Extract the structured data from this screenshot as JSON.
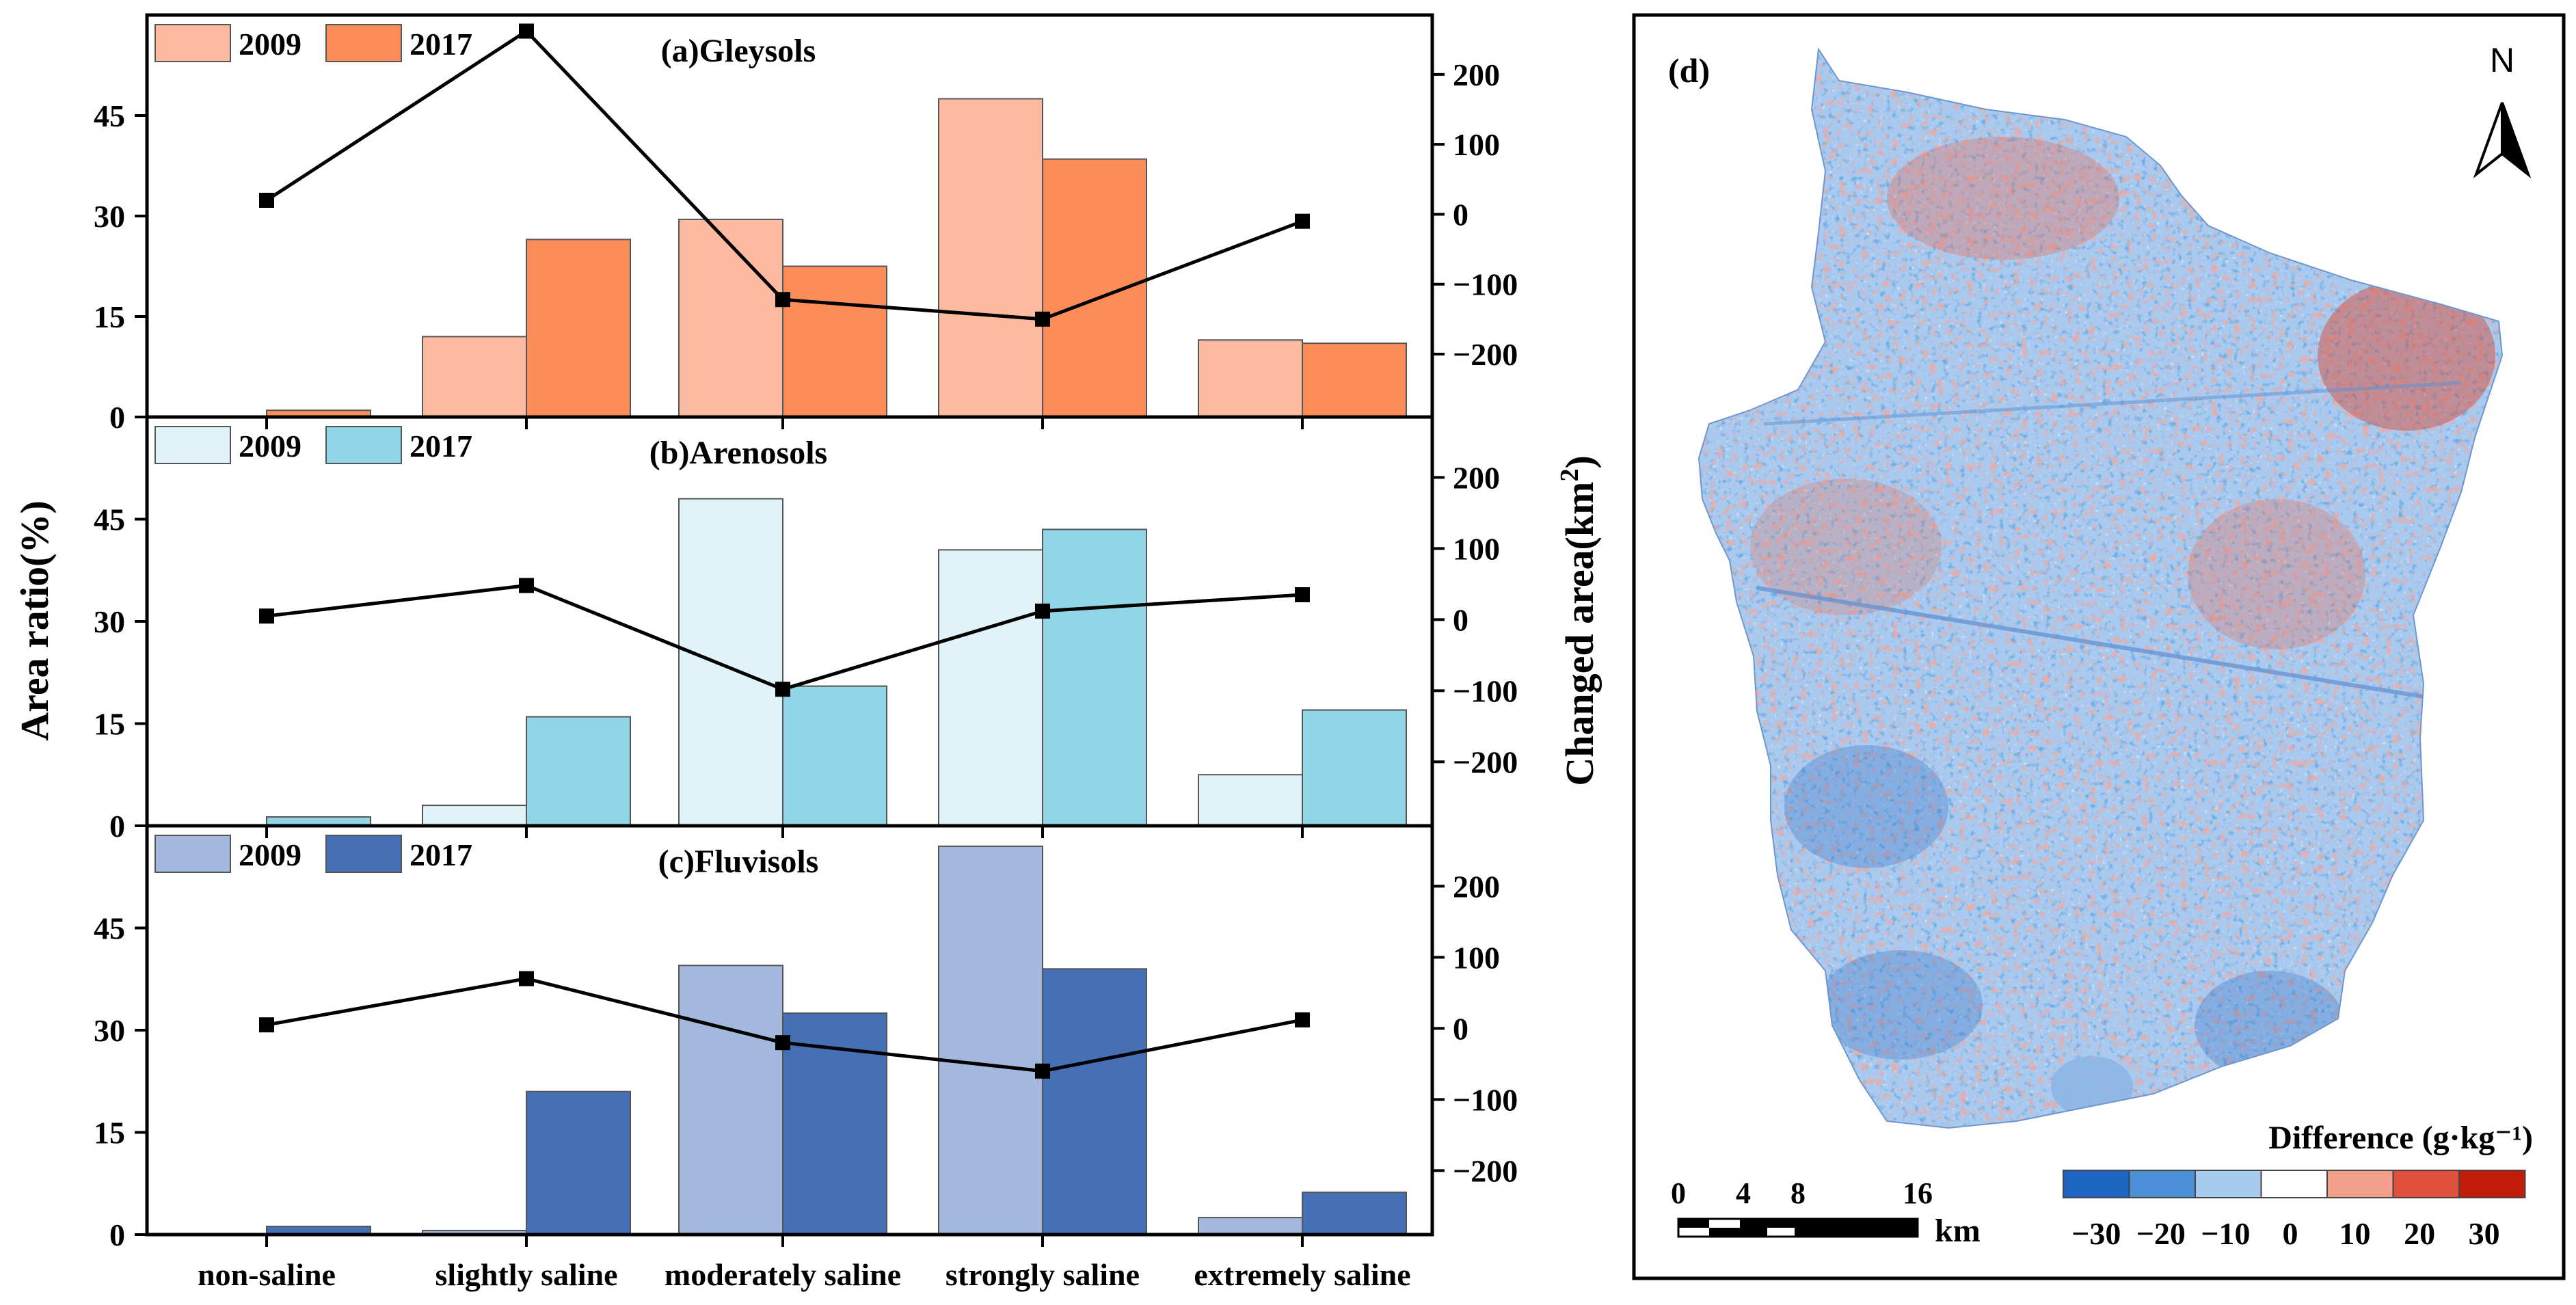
{
  "chart_data": [
    {
      "type": "bar+line",
      "panel_id": "a",
      "title": "(a)Gleysols",
      "categories": [
        "non-saline",
        "slightly saline",
        "moderately saline",
        "strongly saline",
        "extremely saline"
      ],
      "series": [
        {
          "name": "2009",
          "color": "#fcbba0",
          "values": [
            0,
            12,
            29.5,
            47.5,
            11.5
          ]
        },
        {
          "name": "2017",
          "color": "#fc8d59",
          "values": [
            1,
            26.5,
            22.5,
            38.5,
            11
          ]
        },
        {
          "name": "Changed area",
          "type": "line",
          "axis": "right",
          "values": [
            20,
            262,
            -122,
            -150,
            -10
          ]
        }
      ],
      "ylim": [
        0,
        60
      ],
      "yticks": [
        0,
        15,
        30,
        45
      ],
      "y2lim": [
        -290,
        285
      ],
      "y2ticks": [
        200,
        100,
        0,
        -100,
        -200
      ],
      "y2tick_labels": [
        "200",
        "100",
        "0",
        "−100",
        "−200"
      ]
    },
    {
      "type": "bar+line",
      "panel_id": "b",
      "title": "(b)Arenosols",
      "categories": [
        "non-saline",
        "slightly saline",
        "moderately saline",
        "strongly saline",
        "extremely saline"
      ],
      "series": [
        {
          "name": "2009",
          "color": "#e0f3f8",
          "values": [
            0,
            3,
            48,
            40.5,
            7.5
          ]
        },
        {
          "name": "2017",
          "color": "#91d6e6",
          "values": [
            1.3,
            16,
            20.5,
            43.5,
            17
          ]
        },
        {
          "name": "Changed area",
          "type": "line",
          "axis": "right",
          "values": [
            5,
            48,
            -98,
            12,
            35
          ]
        }
      ],
      "ylim": [
        0,
        60
      ],
      "yticks": [
        0,
        15,
        30,
        45
      ],
      "y2lim": [
        -290,
        285
      ],
      "y2ticks": [
        200,
        100,
        0,
        -100,
        -200
      ],
      "y2tick_labels": [
        "200",
        "100",
        "0",
        "−100",
        "−200"
      ]
    },
    {
      "type": "bar+line",
      "panel_id": "c",
      "title": "(c)Fluvisols",
      "categories": [
        "non-saline",
        "slightly saline",
        "moderately saline",
        "strongly saline",
        "extremely saline"
      ],
      "series": [
        {
          "name": "2009",
          "color": "#a3b8dc",
          "values": [
            0,
            0.6,
            39.5,
            57,
            2.5
          ]
        },
        {
          "name": "2017",
          "color": "#4570b5",
          "values": [
            1.2,
            21,
            32.5,
            39,
            6.2
          ]
        },
        {
          "name": "Changed area",
          "type": "line",
          "axis": "right",
          "values": [
            5,
            70,
            -20,
            -60,
            12
          ]
        }
      ],
      "ylim": [
        0,
        60
      ],
      "yticks": [
        0,
        15,
        30,
        45
      ],
      "y2lim": [
        -290,
        285
      ],
      "y2ticks": [
        200,
        100,
        0,
        -100,
        -200
      ],
      "y2tick_labels": [
        "200",
        "100",
        "0",
        "−100",
        "−200"
      ]
    }
  ],
  "axes": {
    "ylabel": "Area ratio(%)",
    "y2label_main": "Changed area(km",
    "y2label_sup": "2",
    "y2label_end": ")"
  },
  "map": {
    "panel_label": "(d)",
    "north_label": "N",
    "scale_ticks": [
      "0",
      "4",
      "8",
      "16"
    ],
    "scale_unit": "km",
    "legend_title": "Difference (g·kg⁻¹)",
    "legend_colors": [
      "#1a66c2",
      "#4a8fd8",
      "#a7cbee",
      "#ffffff",
      "#f2a08a",
      "#e0503c",
      "#c01c08"
    ],
    "legend_labels": [
      "−30",
      "−20",
      "−10",
      "0",
      "10",
      "20",
      "30"
    ]
  }
}
